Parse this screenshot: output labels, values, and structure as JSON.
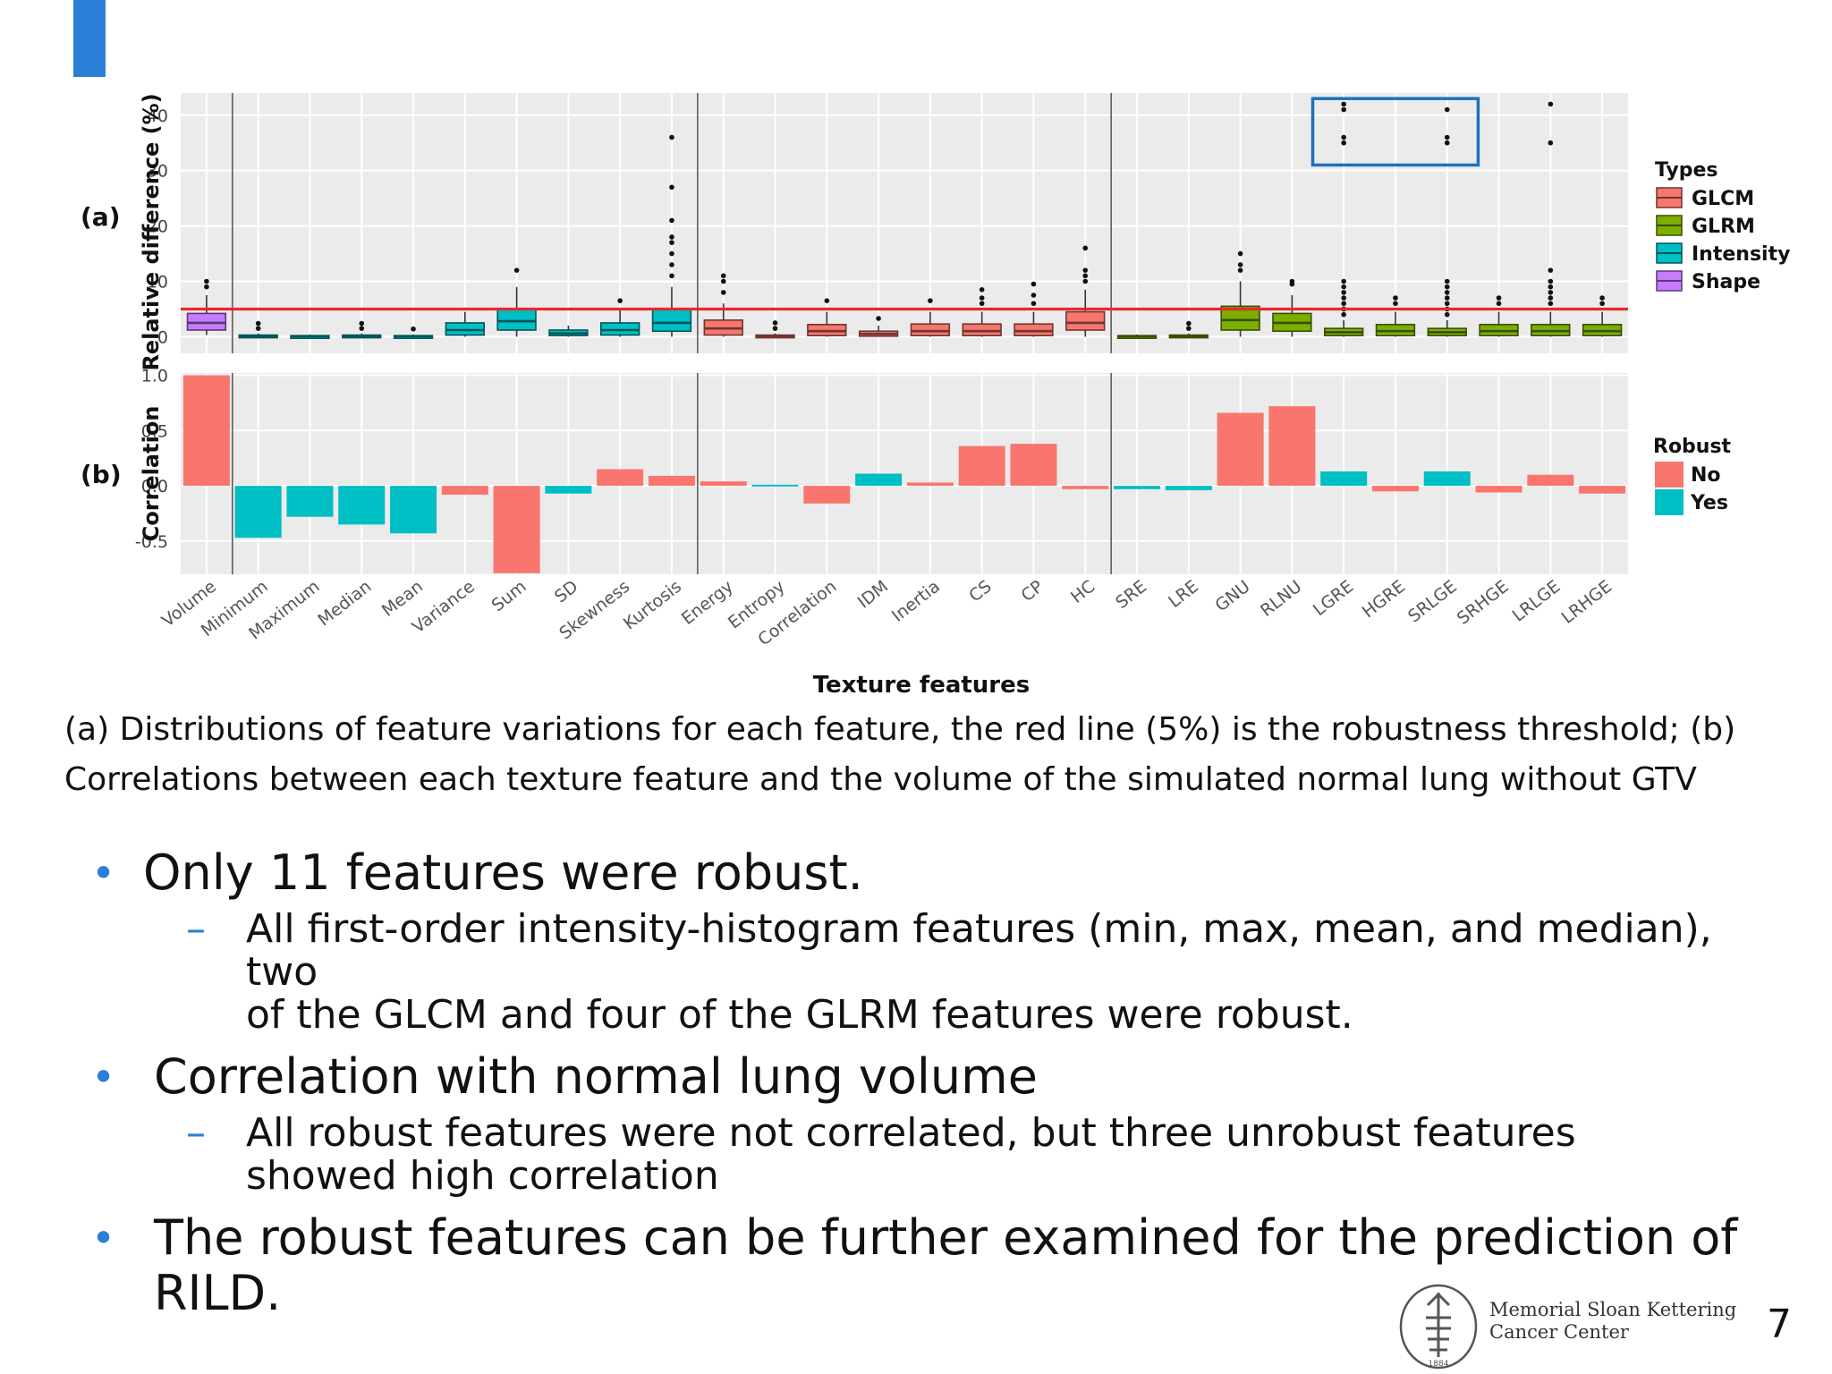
{
  "caption": {
    "line1": "(a) Distributions of feature variations for each feature, the red line (5%) is the robustness threshold; (b)",
    "line2": "Correlations between each texture feature and the volume of the simulated normal lung without GTV"
  },
  "bullets": [
    {
      "text": "Only 11 features were robust.",
      "sub": [
        "All first-order intensity-histogram features (min, max, mean, and median), two",
        "of the GLCM and four of the GLRM features were robust."
      ]
    },
    {
      "text": "Correlation with normal lung volume",
      "sub": [
        "All robust features were not correlated, but  three unrobust features",
        "showed high correlation"
      ]
    },
    {
      "text": "The robust features can be further examined for the prediction of",
      "text2": "RILD."
    }
  ],
  "logo": {
    "line1": "Memorial Sloan Kettering",
    "line2": "Cancer Center",
    "year": "1884"
  },
  "page_number": "7",
  "colors": {
    "GLCM": "#f8766d",
    "GLRM": "#7cae00",
    "Intensity": "#00bfc4",
    "Shape": "#c77cff",
    "No": "#f8766d",
    "Yes": "#00bfc4",
    "threshold": "#e8282e",
    "accent": "#2b7fd9",
    "highlight": "#1f6fbf"
  },
  "chart_data": [
    {
      "type": "box",
      "panel_label": "(a)",
      "ylabel": "Relative difference (%)",
      "ylim": [
        -3,
        44
      ],
      "yticks": [
        0,
        10,
        20,
        30,
        40
      ],
      "threshold": 5,
      "xlabel": "Texture features",
      "legend_title": "Types",
      "legend": [
        "GLCM",
        "GLRM",
        "Intensity",
        "Shape"
      ],
      "legend_position": "right",
      "categories": [
        "Volume",
        "Minimum",
        "Maximum",
        "Median",
        "Mean",
        "Variance",
        "Sum",
        "SD",
        "Skewness",
        "Kurtosis",
        "Energy",
        "Entropy",
        "Correlation",
        "IDM",
        "Inertia",
        "CS",
        "CP",
        "HC",
        "SRE",
        "LRE",
        "GNU",
        "RLNU",
        "LGRE",
        "HGRE",
        "SRLGE",
        "SRHGE",
        "LRLGE",
        "LRHGE"
      ],
      "types": [
        "Shape",
        "Intensity",
        "Intensity",
        "Intensity",
        "Intensity",
        "Intensity",
        "Intensity",
        "Intensity",
        "Intensity",
        "Intensity",
        "GLCM",
        "GLCM",
        "GLCM",
        "GLCM",
        "GLCM",
        "GLCM",
        "GLCM",
        "GLCM",
        "GLRM",
        "GLRM",
        "GLRM",
        "GLRM",
        "GLRM",
        "GLRM",
        "GLRM",
        "GLRM",
        "GLRM",
        "GLRM"
      ],
      "boxes": [
        {
          "q1": 1.2,
          "median": 2.5,
          "q3": 4.2,
          "whisker_low": 0.3,
          "whisker_high": 7.5,
          "outliers": [
            9,
            10
          ]
        },
        {
          "q1": 0,
          "median": 0.1,
          "q3": 0.3,
          "whisker_low": 0,
          "whisker_high": 0.6,
          "outliers": [
            1.5,
            2.4
          ]
        },
        {
          "q1": 0,
          "median": 0.1,
          "q3": 0.2,
          "whisker_low": 0,
          "whisker_high": 0.4,
          "outliers": []
        },
        {
          "q1": 0,
          "median": 0.1,
          "q3": 0.3,
          "whisker_low": 0,
          "whisker_high": 0.6,
          "outliers": [
            1.5,
            2.4
          ]
        },
        {
          "q1": 0,
          "median": 0.1,
          "q3": 0.2,
          "whisker_low": 0,
          "whisker_high": 0.4,
          "outliers": [
            1.4
          ]
        },
        {
          "q1": 0.3,
          "median": 1.2,
          "q3": 2.5,
          "whisker_low": 0,
          "whisker_high": 4.5,
          "outliers": []
        },
        {
          "q1": 1.2,
          "median": 2.8,
          "q3": 5,
          "whisker_low": 0,
          "whisker_high": 9,
          "outliers": [
            12
          ]
        },
        {
          "q1": 0.2,
          "median": 0.6,
          "q3": 1.2,
          "whisker_low": 0,
          "whisker_high": 2,
          "outliers": []
        },
        {
          "q1": 0.3,
          "median": 1.2,
          "q3": 2.5,
          "whisker_low": 0,
          "whisker_high": 5,
          "outliers": [
            6.5
          ]
        },
        {
          "q1": 1,
          "median": 2.5,
          "q3": 5,
          "whisker_low": 0,
          "whisker_high": 9,
          "outliers": [
            11,
            13,
            15,
            17,
            18,
            21,
            27,
            36
          ]
        },
        {
          "q1": 0.3,
          "median": 1.5,
          "q3": 3,
          "whisker_low": 0,
          "whisker_high": 6,
          "outliers": [
            8,
            10,
            11
          ]
        },
        {
          "q1": 0,
          "median": 0.1,
          "q3": 0.3,
          "whisker_low": 0,
          "whisker_high": 0.6,
          "outliers": [
            1.5,
            2.5
          ]
        },
        {
          "q1": 0.2,
          "median": 1,
          "q3": 2.2,
          "whisker_low": 0,
          "whisker_high": 4.5,
          "outliers": [
            6.5
          ]
        },
        {
          "q1": 0.1,
          "median": 0.5,
          "q3": 1,
          "whisker_low": 0,
          "whisker_high": 2,
          "outliers": [
            3.3
          ]
        },
        {
          "q1": 0.2,
          "median": 1,
          "q3": 2.3,
          "whisker_low": 0,
          "whisker_high": 4.5,
          "outliers": [
            6.5
          ]
        },
        {
          "q1": 0.2,
          "median": 1,
          "q3": 2.3,
          "whisker_low": 0,
          "whisker_high": 4.5,
          "outliers": [
            6,
            7,
            8.5
          ]
        },
        {
          "q1": 0.2,
          "median": 1,
          "q3": 2.3,
          "whisker_low": 0,
          "whisker_high": 4.5,
          "outliers": [
            6,
            7.5,
            9.5
          ]
        },
        {
          "q1": 1.2,
          "median": 2.5,
          "q3": 4.5,
          "whisker_low": 0,
          "whisker_high": 8.5,
          "outliers": [
            10,
            11,
            12,
            16
          ]
        },
        {
          "q1": 0,
          "median": 0.1,
          "q3": 0.2,
          "whisker_low": 0,
          "whisker_high": 0.4,
          "outliers": []
        },
        {
          "q1": 0,
          "median": 0.1,
          "q3": 0.3,
          "whisker_low": 0,
          "whisker_high": 0.6,
          "outliers": [
            1.5,
            2.4
          ]
        },
        {
          "q1": 1.2,
          "median": 3,
          "q3": 5.5,
          "whisker_low": 0,
          "whisker_high": 10,
          "outliers": [
            12,
            13,
            15
          ]
        },
        {
          "q1": 1,
          "median": 2.5,
          "q3": 4.2,
          "whisker_low": 0,
          "whisker_high": 7.5,
          "outliers": [
            9.5,
            10
          ]
        },
        {
          "q1": 0.2,
          "median": 0.8,
          "q3": 1.5,
          "whisker_low": 0,
          "whisker_high": 3,
          "outliers": [
            4,
            5,
            6,
            7,
            8,
            9,
            10,
            35,
            36,
            41,
            42
          ]
        },
        {
          "q1": 0.2,
          "median": 1,
          "q3": 2.2,
          "whisker_low": 0,
          "whisker_high": 4.5,
          "outliers": [
            6,
            7
          ]
        },
        {
          "q1": 0.2,
          "median": 0.8,
          "q3": 1.5,
          "whisker_low": 0,
          "whisker_high": 3,
          "outliers": [
            4,
            5,
            6,
            7,
            8,
            9,
            10,
            35,
            36,
            41
          ]
        },
        {
          "q1": 0.2,
          "median": 1,
          "q3": 2.2,
          "whisker_low": 0,
          "whisker_high": 4.5,
          "outliers": [
            6,
            7
          ]
        },
        {
          "q1": 0.2,
          "median": 1,
          "q3": 2.2,
          "whisker_low": 0,
          "whisker_high": 4.5,
          "outliers": [
            6,
            7,
            8,
            9,
            10,
            12,
            35,
            42
          ]
        },
        {
          "q1": 0.2,
          "median": 1,
          "q3": 2.2,
          "whisker_low": 0,
          "whisker_high": 4.5,
          "outliers": [
            6,
            7
          ]
        }
      ],
      "highlight_box": {
        "categories": [
          "LGRE",
          "SRLGE"
        ],
        "ymin": 31,
        "ymax": 43
      }
    },
    {
      "type": "bar",
      "panel_label": "(b)",
      "ylabel": "Correlation",
      "ylim": [
        -0.8,
        1.02
      ],
      "yticks": [
        -0.5,
        0.0,
        0.5,
        1.0
      ],
      "ytick_labels": [
        "-0.5",
        "0.0",
        "0.5",
        "1.0"
      ],
      "legend_title": "Robust",
      "legend": [
        "No",
        "Yes"
      ],
      "legend_position": "right",
      "categories": [
        "Volume",
        "Minimum",
        "Maximum",
        "Median",
        "Mean",
        "Variance",
        "Sum",
        "SD",
        "Skewness",
        "Kurtosis",
        "Energy",
        "Entropy",
        "Correlation",
        "IDM",
        "Inertia",
        "CS",
        "CP",
        "HC",
        "SRE",
        "LRE",
        "GNU",
        "RLNU",
        "LGRE",
        "HGRE",
        "SRLGE",
        "SRHGE",
        "LRLGE",
        "LRHGE"
      ],
      "values": [
        1.0,
        -0.47,
        -0.28,
        -0.35,
        -0.43,
        -0.08,
        -0.79,
        -0.07,
        0.15,
        0.09,
        0.04,
        0.01,
        -0.16,
        0.11,
        0.03,
        0.36,
        0.38,
        -0.03,
        -0.03,
        -0.04,
        0.66,
        0.72,
        0.13,
        -0.05,
        0.13,
        -0.06,
        0.1,
        -0.07
      ],
      "robust": [
        "No",
        "Yes",
        "Yes",
        "Yes",
        "Yes",
        "No",
        "No",
        "Yes",
        "No",
        "No",
        "No",
        "Yes",
        "No",
        "Yes",
        "No",
        "No",
        "No",
        "No",
        "Yes",
        "Yes",
        "No",
        "No",
        "Yes",
        "No",
        "Yes",
        "No",
        "No",
        "No"
      ]
    }
  ]
}
